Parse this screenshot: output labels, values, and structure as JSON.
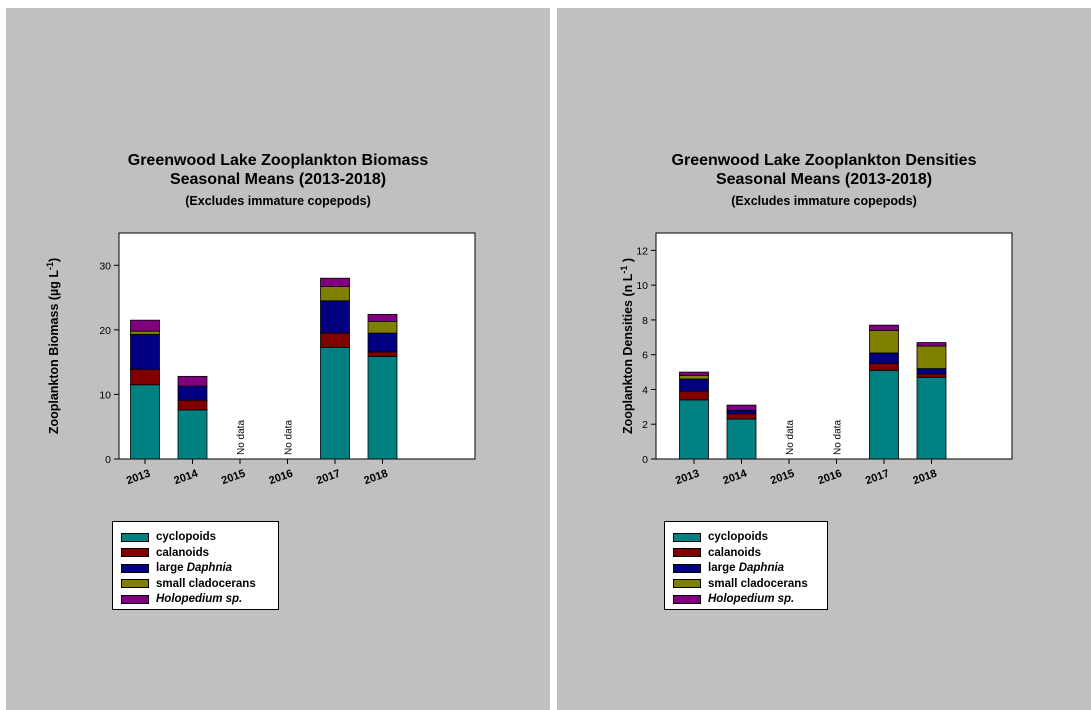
{
  "colors": {
    "cyclopoids": "#008080",
    "calanoids": "#800000",
    "large_daphnia": "#000080",
    "small_cladocerans": "#808000",
    "holopedium": "#800080",
    "panel_bg": "#c0c0c0"
  },
  "chart_data": [
    {
      "type": "bar",
      "stacked": true,
      "title": "Greenwood Lake Zooplankton Biomass",
      "subtitle": "Seasonal Means (2013-2018)",
      "note": "(Excludes immature copepods)",
      "ylabel": "Zooplankton Biomass (µg L",
      "ylabel_sup": "-1",
      "ylabel_end": ")",
      "ylim": [
        0,
        35
      ],
      "yticks": [
        0,
        10,
        20,
        30
      ],
      "categories": [
        "2013",
        "2014",
        "2015",
        "2016",
        "2017",
        "2018"
      ],
      "no_data_label": "No data",
      "no_data_categories": [
        "2015",
        "2016"
      ],
      "series": [
        {
          "name": "cyclopoids",
          "values": [
            11.5,
            7.6,
            null,
            null,
            17.3,
            15.9
          ]
        },
        {
          "name": "calanoids",
          "values": [
            2.4,
            1.5,
            null,
            null,
            2.2,
            0.7
          ]
        },
        {
          "name": "large Daphnia",
          "values": [
            5.4,
            2.2,
            null,
            null,
            5.0,
            2.9
          ]
        },
        {
          "name": "small cladocerans",
          "values": [
            0.5,
            0.0,
            null,
            null,
            2.2,
            1.8
          ]
        },
        {
          "name": "Holopedium sp.",
          "values": [
            1.7,
            1.5,
            null,
            null,
            1.3,
            1.1
          ]
        }
      ],
      "legend_position": "bottom-left"
    },
    {
      "type": "bar",
      "stacked": true,
      "title": "Greenwood Lake Zooplankton Densities",
      "subtitle": "Seasonal Means (2013-2018)",
      "note": "(Excludes immature copepods)",
      "ylabel": "Zooplankton Densities (n L",
      "ylabel_sup": "-1",
      "ylabel_end": " )",
      "ylim": [
        0,
        13
      ],
      "yticks": [
        0,
        2,
        4,
        6,
        8,
        10,
        12
      ],
      "categories": [
        "2013",
        "2014",
        "2015",
        "2016",
        "2017",
        "2018"
      ],
      "no_data_label": "No data",
      "no_data_categories": [
        "2015",
        "2016"
      ],
      "series": [
        {
          "name": "cyclopoids",
          "values": [
            3.4,
            2.3,
            null,
            null,
            5.1,
            4.7
          ]
        },
        {
          "name": "calanoids",
          "values": [
            0.5,
            0.3,
            null,
            null,
            0.4,
            0.2
          ]
        },
        {
          "name": "large Daphnia",
          "values": [
            0.7,
            0.2,
            null,
            null,
            0.6,
            0.3
          ]
        },
        {
          "name": "small cladocerans",
          "values": [
            0.2,
            0.0,
            null,
            null,
            1.3,
            1.3
          ]
        },
        {
          "name": "Holopedium sp.",
          "values": [
            0.2,
            0.3,
            null,
            null,
            0.3,
            0.2
          ]
        }
      ],
      "legend_position": "bottom-left"
    }
  ],
  "legend": {
    "items": [
      {
        "label": "cyclopoids",
        "italic": "",
        "color": "#008080"
      },
      {
        "label": "calanoids",
        "italic": "",
        "color": "#800000"
      },
      {
        "label": "large ",
        "italic": "Daphnia",
        "color": "#000080"
      },
      {
        "label": "small cladocerans",
        "italic": "",
        "color": "#808000"
      },
      {
        "label": "",
        "italic": "Holopedium sp.",
        "color": "#800080"
      }
    ]
  }
}
